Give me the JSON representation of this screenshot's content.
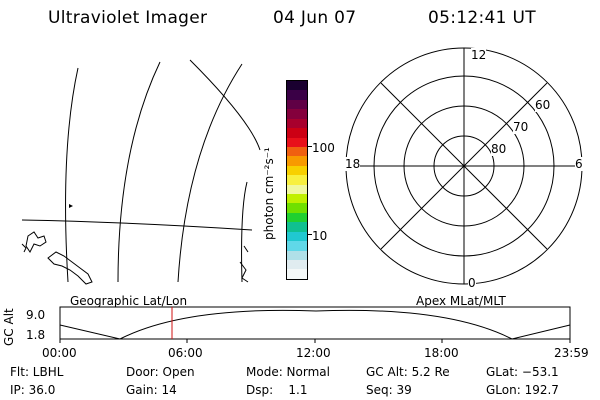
{
  "header": {
    "title": "Ultraviolet Imager",
    "date": "04 Jun 07",
    "time": "05:12:41 UT"
  },
  "colorbar": {
    "unit_label": "photon cm⁻²s⁻¹",
    "ticks": [
      "100",
      "10"
    ],
    "colors": [
      "#1a0030",
      "#3a0046",
      "#600045",
      "#84003c",
      "#a8002d",
      "#cc0014",
      "#e8101a",
      "#f06010",
      "#f89a00",
      "#f8d000",
      "#f8f040",
      "#f0f8a0",
      "#c0f000",
      "#70e000",
      "#20d030",
      "#10c090",
      "#20c8d0",
      "#60d8e8",
      "#b0e0e8",
      "#e0ecf0",
      "#f4f8f8"
    ]
  },
  "polar": {
    "mlt_labels": {
      "top": "12",
      "left": "18",
      "right": "6",
      "bottom": "0"
    },
    "lat_labels": [
      "60",
      "70",
      "80"
    ]
  },
  "timeline": {
    "ylabel": "GC Alt",
    "yticks": [
      "9.0",
      "1.8"
    ],
    "left_caption": "Geographic Lat/Lon",
    "right_caption": "Apex MLat/MLT",
    "xticks": [
      "00:00",
      "06:00",
      "12:00",
      "18:00",
      "23:59"
    ],
    "marker_color": "#d01010"
  },
  "info": {
    "flt": "Flt: LBHL",
    "ip": "IP: 36.0",
    "door": "Door: Open",
    "gain": "Gain: 14",
    "mode": "Mode: Normal",
    "dsp": "Dsp:    1.1",
    "gcalt": "GC Alt: 5.2 Re",
    "seq": "Seq: 39",
    "glat": "GLat: −53.1",
    "glon": "GLon: 192.7"
  }
}
